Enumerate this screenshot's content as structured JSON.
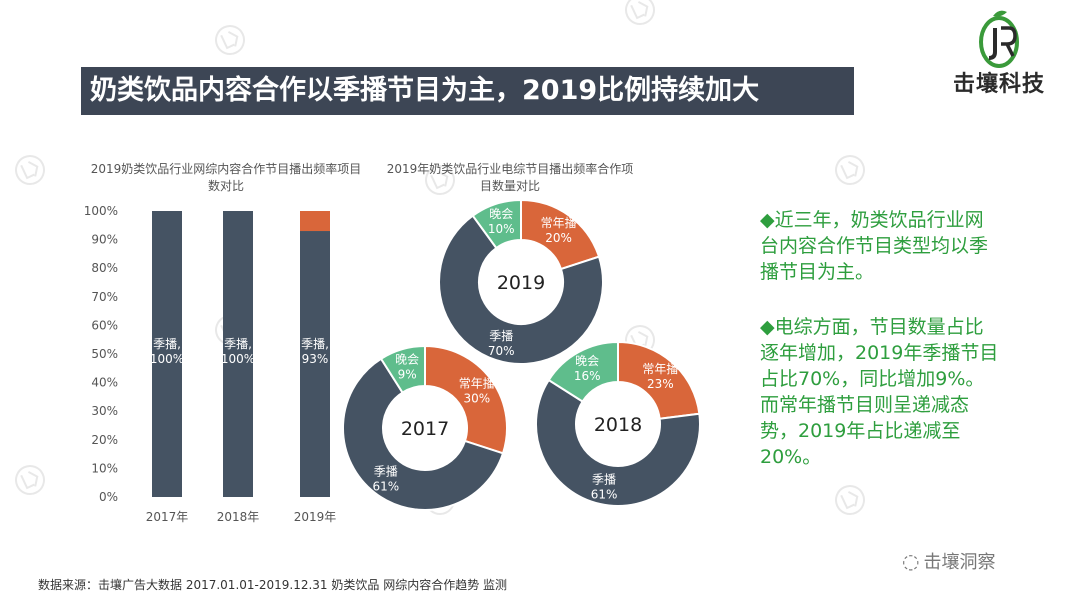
{
  "header": {
    "title": "奶类饮品内容合作以季播节目为主，2019比例持续加大",
    "logo_text": "击壤科技",
    "logo_icon": "jr-leaf-logo-icon"
  },
  "text_panel": {
    "points": [
      "◆近三年，奶类饮品行业网台内容合作节目类型均以季播节目为主。",
      "◆电综方面，节目数量占比逐年增加，2019年季播节目占比70%，同比增加9%。而常年播节目则呈递减态势，2019年占比递减至20%。"
    ]
  },
  "footer": {
    "source": "数据来源：击壤广告大数据  2017.01.01-2019.12.31 奶类饮品 网综内容合作趋势 监测",
    "wechat_label": "击壤洞察"
  },
  "colors": {
    "dark": "#455363",
    "orange": "#d9663a",
    "green": "#5fbd8c",
    "accent_text": "#2e9e3e"
  },
  "chart_data": [
    {
      "type": "bar",
      "stacked": true,
      "title": "2019奶类饮品行业网综内容合作节目播出频率项目数对比",
      "categories": [
        "2017年",
        "2018年",
        "2019年"
      ],
      "series": [
        {
          "name": "季播",
          "values": [
            100,
            100,
            93
          ],
          "labels": [
            "季播,\n100%",
            "季播,\n100%",
            "季播,\n93%"
          ]
        },
        {
          "values": [
            0,
            0,
            7
          ]
        }
      ],
      "y_ticks": [
        "0%",
        "10%",
        "20%",
        "30%",
        "40%",
        "50%",
        "60%",
        "70%",
        "80%",
        "90%",
        "100%"
      ],
      "ylim": [
        0,
        100
      ]
    },
    {
      "type": "pie",
      "title": "2019年奶类饮品行业电综节目播出频率合作项目数量对比",
      "donuts": [
        {
          "year": "2019",
          "slices": [
            {
              "name": "常年播",
              "value": 20,
              "label": "20%"
            },
            {
              "name": "季播",
              "value": 70,
              "label": "70%"
            },
            {
              "name": "晚会",
              "value": 10,
              "label": "10%"
            }
          ]
        },
        {
          "year": "2017",
          "slices": [
            {
              "name": "常年播",
              "value": 30,
              "label": "30%"
            },
            {
              "name": "季播",
              "value": 61,
              "label": "61%"
            },
            {
              "name": "晚会",
              "value": 9,
              "label": "9%"
            }
          ]
        },
        {
          "year": "2018",
          "slices": [
            {
              "name": "常年播",
              "value": 23,
              "label": "23%"
            },
            {
              "name": "季播",
              "value": 61,
              "label": "61%"
            },
            {
              "name": "晚会",
              "value": 16,
              "label": "16%"
            }
          ]
        }
      ]
    }
  ]
}
